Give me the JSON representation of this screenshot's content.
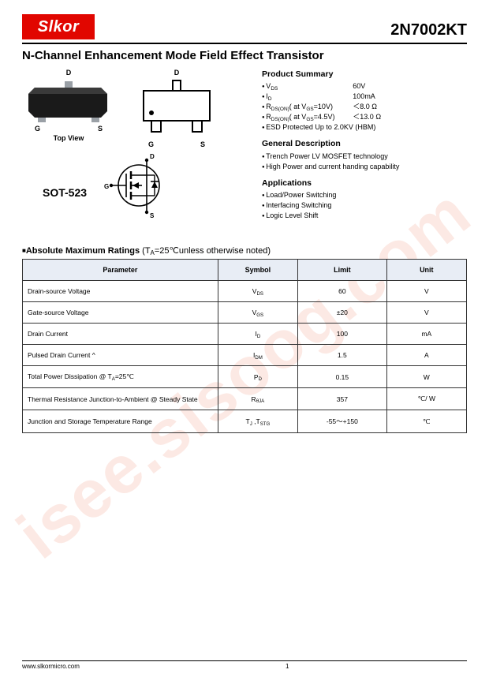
{
  "logo": "Slkor",
  "part_number": "2N7002KT",
  "title": "N-Channel Enhancement Mode Field Effect Transistor",
  "labels": {
    "top_view": "Top View",
    "package": "SOT-523",
    "pin_g": "G",
    "pin_s": "S",
    "pin_d": "D"
  },
  "product_summary": {
    "heading": "Product Summary",
    "rows": [
      {
        "l": "V",
        "lsub": "DS",
        "r": "60V"
      },
      {
        "l": "I",
        "lsub": "D",
        "r": "100mA"
      },
      {
        "l": "R",
        "lsub": "DS(ON)",
        "mid": "( at V",
        "midsub": "GS",
        "mid2": "=10V)",
        "r": "＜8.0 Ω"
      },
      {
        "l": "R",
        "lsub": "DS(ON)",
        "mid": "( at V",
        "midsub": "GS",
        "mid2": "=4.5V)",
        "r": "＜13.0 Ω"
      }
    ],
    "esd": "ESD Protected Up to 2.0KV (HBM)"
  },
  "general_description": {
    "heading": "General Description",
    "items": [
      "Trench Power LV MOSFET technology",
      "High Power and current handing capability"
    ]
  },
  "applications": {
    "heading": "Applications",
    "items": [
      "Load/Power Switching",
      "Interfacing Switching",
      "Logic Level Shift"
    ]
  },
  "ratings": {
    "title_bold": "Absolute Maximum Ratings",
    "title_rest": " (T",
    "title_sub": "A",
    "title_rest2": "=25℃unless otherwise noted)",
    "columns": [
      "Parameter",
      "Symbol",
      "Limit",
      "Unit"
    ],
    "col_widths": [
      "44%",
      "18%",
      "20%",
      "18%"
    ],
    "rows": [
      {
        "param": "Drain-source Voltage",
        "sym": "V",
        "symsub": "DS",
        "limit": "60",
        "unit": "V"
      },
      {
        "param": "Gate-source Voltage",
        "sym": "V",
        "symsub": "GS",
        "limit": "±20",
        "unit": "V"
      },
      {
        "param": "Drain Current",
        "sym": "I",
        "symsub": "D",
        "limit": "100",
        "unit": "mA"
      },
      {
        "param": "Pulsed Drain Current ^",
        "sym": "I",
        "symsub": "DM",
        "limit": "1.5",
        "unit": "A"
      },
      {
        "param": "Total Power Dissipation @ T",
        "param_sub": "A",
        "param2": "=25℃",
        "sym": "P",
        "symsub": "D",
        "limit": "0.15",
        "unit": "W"
      },
      {
        "param": "Thermal Resistance Junction-to-Ambient @ Steady State",
        "sym": "R",
        "symsub": "θJA",
        "limit": "357",
        "unit": "℃/ W"
      },
      {
        "param": "Junction and Storage Temperature Range",
        "sym": "T",
        "symsub": "J",
        "sym2": ",T",
        "sym2sub": "STG",
        "limit": "-55～+150",
        "unit": "℃"
      }
    ]
  },
  "footer": {
    "url": "www.slkormicro.com",
    "page": "1"
  },
  "watermark": "isee.sisoog.com",
  "colors": {
    "logo_bg": "#e10600",
    "table_header_bg": "#e8edf5",
    "watermark": "rgba(230,70,30,0.12)"
  }
}
